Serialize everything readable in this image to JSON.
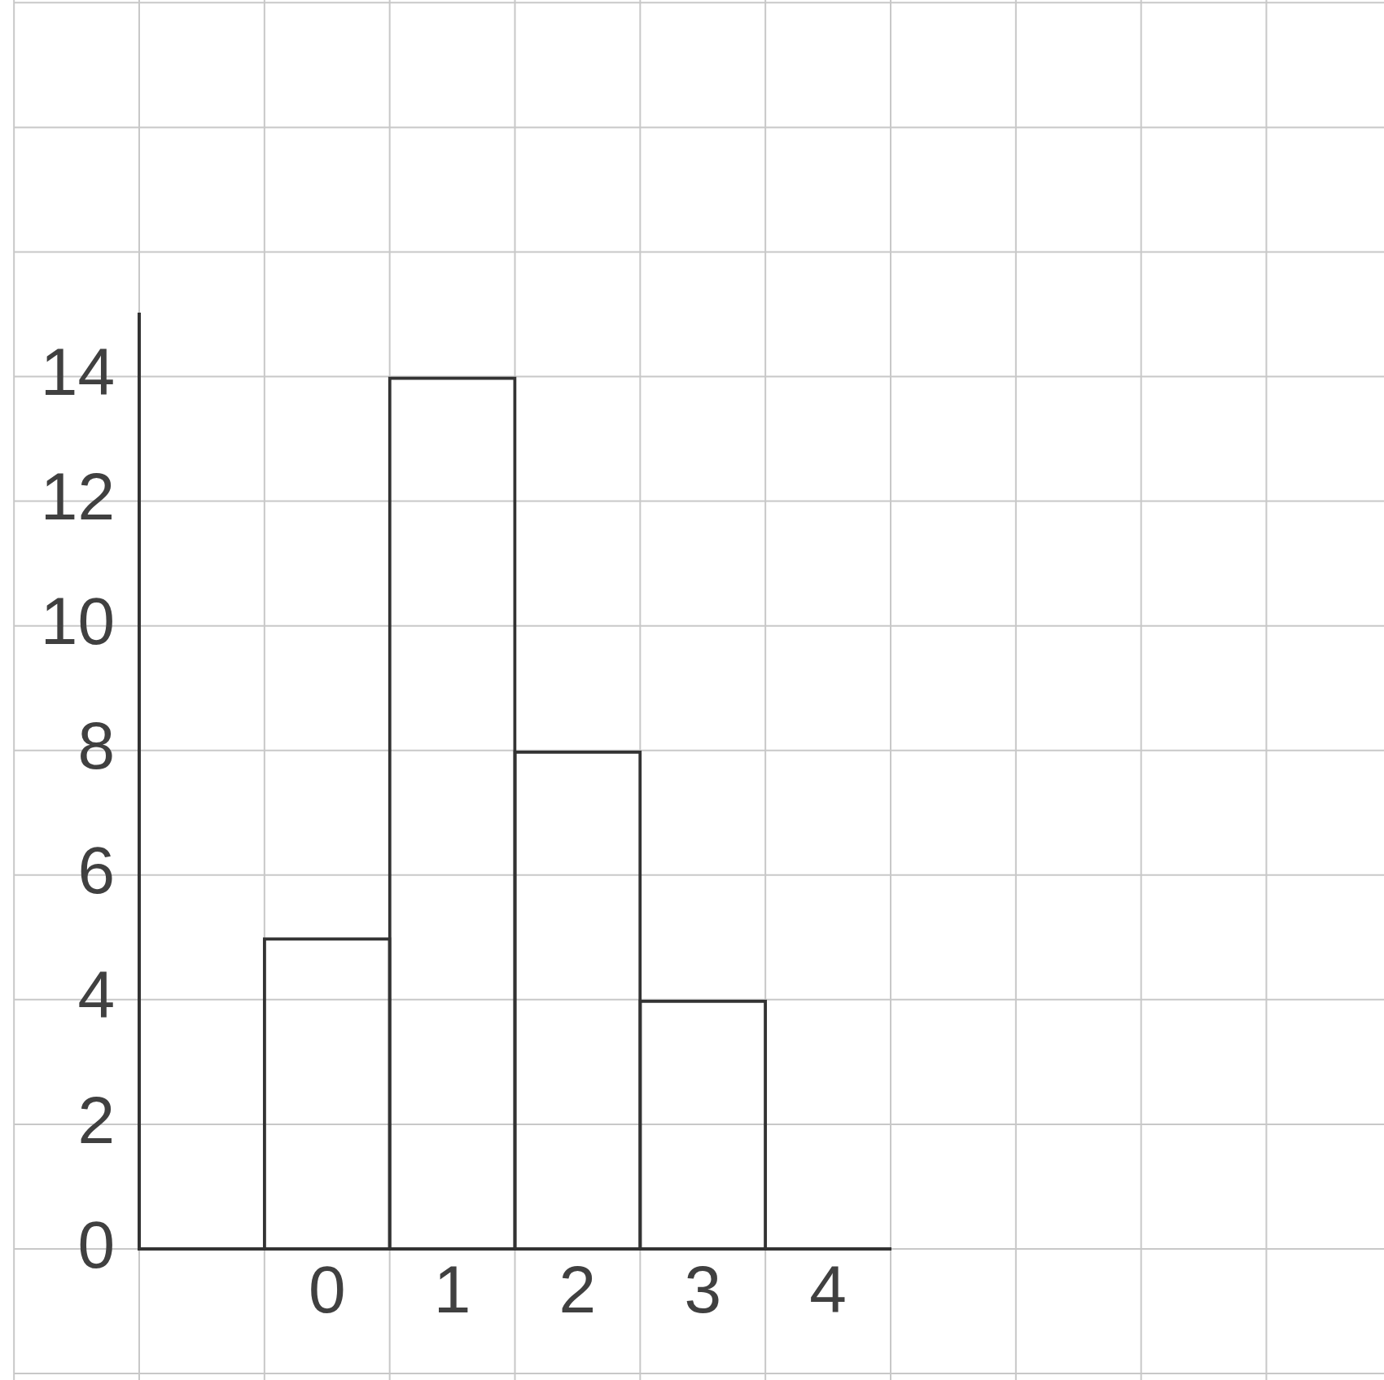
{
  "chart_data": {
    "type": "bar",
    "categories": [
      null,
      "0",
      "1",
      "2",
      "3",
      "4"
    ],
    "values": [
      null,
      5,
      14,
      8,
      4,
      0
    ],
    "color": "#333333",
    "ylim": [
      0,
      15
    ],
    "yticks": [
      0,
      2,
      4,
      6,
      8,
      10,
      12,
      14
    ],
    "grid": true
  }
}
